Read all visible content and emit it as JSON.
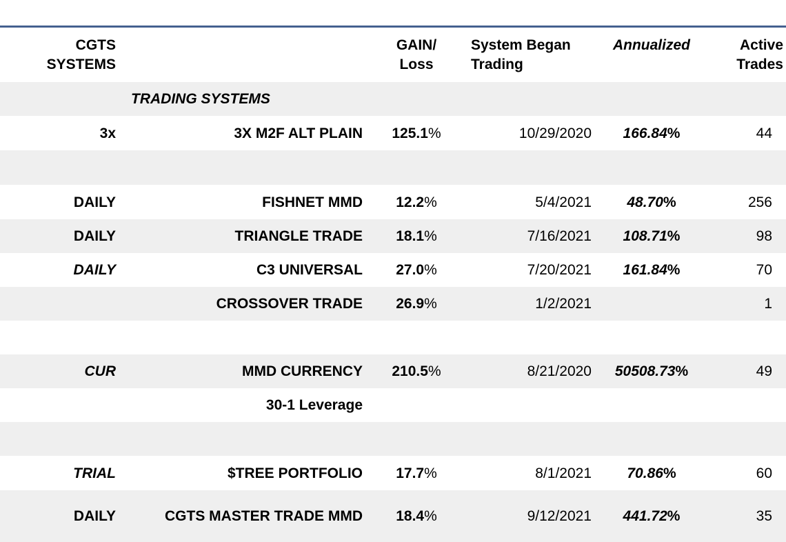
{
  "table": {
    "header": {
      "systems": "CGTS\nSYSTEMS",
      "gain_loss": "GAIN/\nLoss",
      "system_began_trading": "System Began\nTrading",
      "annualized": "Annualized",
      "active_trades": "Active\nTrades"
    },
    "rows": [
      {
        "kind": "section",
        "name": "TRADING SYSTEMS",
        "shaded": true
      },
      {
        "kind": "data",
        "code": "3x",
        "code_em": false,
        "name": "3X M2F ALT PLAIN",
        "gain": "125.1%",
        "began": "10/29/2020",
        "annualized": "166.84%",
        "trades": "44",
        "shaded": false
      },
      {
        "kind": "empty",
        "shaded": true
      },
      {
        "kind": "data",
        "code": "DAILY",
        "code_em": false,
        "name": "FISHNET MMD",
        "gain": "12.2%",
        "began": "5/4/2021",
        "annualized": "48.70%",
        "trades": "256",
        "shaded": false
      },
      {
        "kind": "data",
        "code": "DAILY",
        "code_em": false,
        "name": "TRIANGLE TRADE",
        "gain": "18.1%",
        "began": "7/16/2021",
        "annualized": "108.71%",
        "trades": "98",
        "shaded": true
      },
      {
        "kind": "data",
        "code": "DAILY",
        "code_em": true,
        "name": "C3 UNIVERSAL",
        "gain": "27.0%",
        "began": "7/20/2021",
        "annualized": "161.84%",
        "trades": "70",
        "shaded": false
      },
      {
        "kind": "data",
        "code": "",
        "code_em": false,
        "name": "CROSSOVER TRADE",
        "gain": "26.9%",
        "began": "1/2/2021",
        "annualized": "",
        "trades": "1",
        "shaded": true
      },
      {
        "kind": "empty",
        "shaded": false
      },
      {
        "kind": "data",
        "code": "CUR",
        "code_em": true,
        "name": "MMD CURRENCY",
        "gain": "210.5%",
        "began": "8/21/2020",
        "annualized": "50508.73%",
        "trades": "49",
        "shaded": true
      },
      {
        "kind": "note",
        "name": "30-1 Leverage",
        "shaded": false
      },
      {
        "kind": "empty",
        "shaded": true
      },
      {
        "kind": "data",
        "code": "TRIAL",
        "code_em": true,
        "name": "$TREE PORTFOLIO",
        "gain": "17.7%",
        "began": "8/1/2021",
        "annualized": "70.86%",
        "trades": "60",
        "shaded": false
      },
      {
        "kind": "data",
        "code": "DAILY",
        "code_em": false,
        "name": "CGTS MASTER TRADE MMD",
        "gain": "18.4%",
        "began": "9/12/2021",
        "annualized": "441.72%",
        "trades": "35",
        "shaded": true
      }
    ],
    "colors": {
      "divider_blue": "#44608f",
      "band_gray": "#efefef",
      "text": "#000000"
    }
  }
}
